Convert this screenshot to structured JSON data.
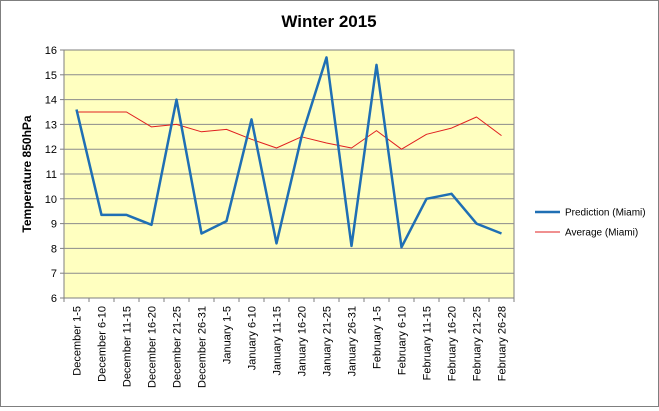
{
  "chart_data": {
    "type": "line",
    "title": "Winter 2015",
    "xlabel": "",
    "ylabel": "Temperature 850hPa",
    "ylim": [
      6,
      16
    ],
    "yticks": [
      6,
      7,
      8,
      9,
      10,
      11,
      12,
      13,
      14,
      15,
      16
    ],
    "grid": true,
    "legend_position": "right",
    "plot_background": "#ffffc0",
    "categories": [
      "December 1-5",
      "December 6-10",
      "December 11-15",
      "December 16-20",
      "December 21-25",
      "December 26-31",
      "January 1-5",
      "January 6-10",
      "January 11-15",
      "January 16-20",
      "January 21-25",
      "January 26-31",
      "February 1-5",
      "February 6-10",
      "February 11-15",
      "February 16-20",
      "February 21-25",
      "February 26-28"
    ],
    "series": [
      {
        "name": "Prediction (Miami)",
        "color": "#1f6fb4",
        "values": [
          13.6,
          9.35,
          9.35,
          8.95,
          14.0,
          8.6,
          9.1,
          13.2,
          8.2,
          12.5,
          15.7,
          8.1,
          15.4,
          8.05,
          10.0,
          10.2,
          9.0,
          8.6
        ]
      },
      {
        "name": "Average (Miami)",
        "color": "#e02020",
        "values": [
          13.5,
          13.5,
          13.5,
          12.9,
          13.0,
          12.7,
          12.8,
          12.4,
          12.05,
          12.5,
          12.25,
          12.05,
          12.75,
          12.0,
          12.6,
          12.85,
          13.3,
          12.55
        ]
      }
    ]
  }
}
